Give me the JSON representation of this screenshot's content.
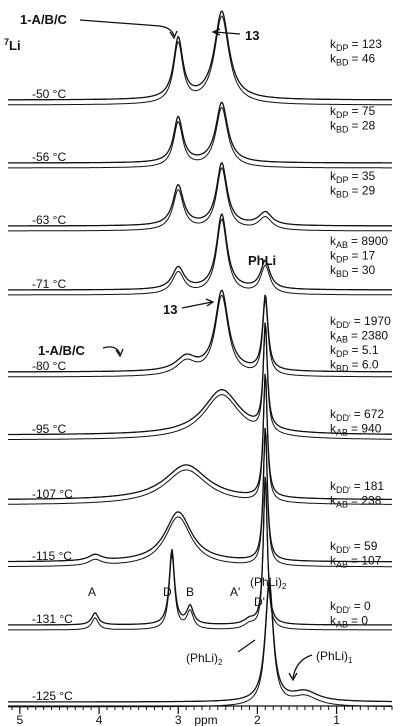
{
  "chart_data": {
    "type": "stacked-spectra",
    "nucleus": {
      "mass": "7",
      "symbol": "Li"
    },
    "xlabel": "ppm",
    "xlim": [
      5.15,
      0.3
    ],
    "xticks": [
      5,
      4,
      3,
      2,
      1
    ],
    "xminor": 0.1,
    "rate_symbol": "k",
    "spectra": [
      {
        "temperature": "-50 °C",
        "peaks": [
          {
            "ppm": 3.0,
            "height": 60,
            "width": 0.07
          },
          {
            "ppm": 2.45,
            "height": 88,
            "width": 0.11
          }
        ],
        "rates": [
          {
            "sub": "DP",
            "text": "= 123"
          },
          {
            "sub": "BD",
            "text": "= 46"
          }
        ]
      },
      {
        "temperature": "-56 °C",
        "peaks": [
          {
            "ppm": 3.0,
            "height": 45,
            "width": 0.07
          },
          {
            "ppm": 2.45,
            "height": 60,
            "width": 0.09
          }
        ],
        "rates": [
          {
            "sub": "DP",
            "text": "= 75"
          },
          {
            "sub": "BD",
            "text": "= 28"
          }
        ]
      },
      {
        "temperature": "-63 °C",
        "peaks": [
          {
            "ppm": 3.0,
            "height": 40,
            "width": 0.08
          },
          {
            "ppm": 2.45,
            "height": 62,
            "width": 0.08
          },
          {
            "ppm": 1.9,
            "height": 13,
            "width": 0.1
          }
        ],
        "rates": [
          {
            "sub": "DP",
            "text": "= 35"
          },
          {
            "sub": "BD",
            "text": "= 29"
          }
        ]
      },
      {
        "temperature": "-71 °C",
        "peaks": [
          {
            "ppm": 3.0,
            "height": 22,
            "width": 0.09
          },
          {
            "ppm": 2.45,
            "height": 75,
            "width": 0.08
          },
          {
            "ppm": 1.9,
            "height": 28,
            "width": 0.07
          }
        ],
        "rates": [
          {
            "sub": "AB",
            "text": "= 8900"
          },
          {
            "sub": "DP",
            "text": "= 17"
          },
          {
            "sub": "BD",
            "text": "= 30"
          }
        ]
      },
      {
        "temperature": "-80 °C",
        "peaks": [
          {
            "ppm": 2.9,
            "height": 14,
            "width": 0.15
          },
          {
            "ppm": 2.45,
            "height": 80,
            "width": 0.1
          },
          {
            "ppm": 1.9,
            "height": 75,
            "width": 0.04
          }
        ],
        "rates": [
          {
            "sub": "DD'",
            "text": "= 1970"
          },
          {
            "sub": "AB",
            "text": "= 2380"
          },
          {
            "sub": "DP",
            "text": "= 5.1"
          },
          {
            "sub": "BD",
            "text": "= 6.0"
          }
        ]
      },
      {
        "temperature": "-95 °C",
        "peaks": [
          {
            "ppm": 2.45,
            "height": 45,
            "width": 0.28
          },
          {
            "ppm": 1.9,
            "height": 105,
            "width": 0.03
          }
        ],
        "rates": [
          {
            "sub": "DD'",
            "text": "= 672"
          },
          {
            "sub": "AB",
            "text": "= 940"
          }
        ]
      },
      {
        "temperature": "-107 °C",
        "peaks": [
          {
            "ppm": 2.9,
            "height": 35,
            "width": 0.33
          },
          {
            "ppm": 1.9,
            "height": 125,
            "width": 0.03
          }
        ],
        "rates": [
          {
            "sub": "DD'",
            "text": "= 181"
          },
          {
            "sub": "AB",
            "text": "= 238"
          }
        ]
      },
      {
        "temperature": "-115 °C",
        "peaks": [
          {
            "ppm": 4.05,
            "height": 6,
            "width": 0.1
          },
          {
            "ppm": 3.0,
            "height": 50,
            "width": 0.2
          },
          {
            "ppm": 1.9,
            "height": 135,
            "width": 0.03
          }
        ],
        "rates": [
          {
            "sub": "DD'",
            "text": "= 59"
          },
          {
            "sub": "AB",
            "text": "= 107"
          }
        ]
      },
      {
        "temperature": "-131 °C",
        "peaks": [
          {
            "ppm": 4.05,
            "height": 12,
            "width": 0.05
          },
          {
            "ppm": 3.08,
            "height": 75,
            "width": 0.04
          },
          {
            "ppm": 2.85,
            "height": 18,
            "width": 0.05
          },
          {
            "ppm": 2.1,
            "height": 5,
            "width": 0.08
          },
          {
            "ppm": 1.9,
            "height": 150,
            "width": 0.03
          }
        ],
        "rates": [
          {
            "sub": "DD'",
            "text": "= 0"
          },
          {
            "sub": "AB",
            "text": "= 0"
          }
        ]
      },
      {
        "temperature": "-125 °C",
        "peaks": [
          {
            "ppm": 1.85,
            "height": 120,
            "width": 0.06
          },
          {
            "ppm": 1.4,
            "height": 10,
            "width": 0.2
          }
        ],
        "rates": []
      }
    ],
    "annotations": [
      {
        "text": "1-A/B/C"
      },
      {
        "text": "13"
      },
      {
        "text": "PhLi"
      },
      {
        "text": "13"
      },
      {
        "text": "1-A/B/C"
      },
      {
        "text": "A"
      },
      {
        "text": "D"
      },
      {
        "text": "B"
      },
      {
        "text": "A'"
      },
      {
        "text": "(PhLi)",
        "sub": "2"
      },
      {
        "text": "D'"
      },
      {
        "text": "(PhLi)",
        "sub": "2"
      },
      {
        "text": "(PhLi)",
        "sub": "1"
      }
    ]
  }
}
